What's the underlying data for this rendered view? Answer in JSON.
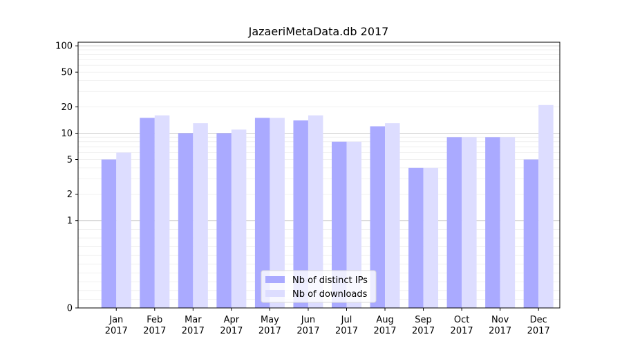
{
  "chart_data": {
    "type": "bar",
    "title": "JazaeriMetaData.db 2017",
    "xlabel": "",
    "ylabel": "",
    "y_scale": "symlog",
    "ylim": [
      0,
      110
    ],
    "y_ticks": [
      0,
      1,
      2,
      5,
      10,
      20,
      50,
      100
    ],
    "y_tick_labels": [
      "0",
      "1",
      "2",
      "5",
      "10",
      "20",
      "50",
      "100"
    ],
    "grid": "horizontal",
    "legend_position": "lower-center",
    "categories": [
      [
        "Jan",
        "2017"
      ],
      [
        "Feb",
        "2017"
      ],
      [
        "Mar",
        "2017"
      ],
      [
        "Apr",
        "2017"
      ],
      [
        "May",
        "2017"
      ],
      [
        "Jun",
        "2017"
      ],
      [
        "Jul",
        "2017"
      ],
      [
        "Aug",
        "2017"
      ],
      [
        "Sep",
        "2017"
      ],
      [
        "Oct",
        "2017"
      ],
      [
        "Nov",
        "2017"
      ],
      [
        "Dec",
        "2017"
      ]
    ],
    "series": [
      {
        "name": "Nb of distinct IPs",
        "color": "#aaaaff",
        "values": [
          5,
          15,
          10,
          10,
          15,
          14,
          8,
          12,
          4,
          9,
          9,
          5
        ]
      },
      {
        "name": "Nb of downloads",
        "color": "#ddddff",
        "values": [
          6,
          16,
          13,
          11,
          15,
          16,
          8,
          13,
          4,
          9,
          9,
          21
        ]
      }
    ]
  }
}
